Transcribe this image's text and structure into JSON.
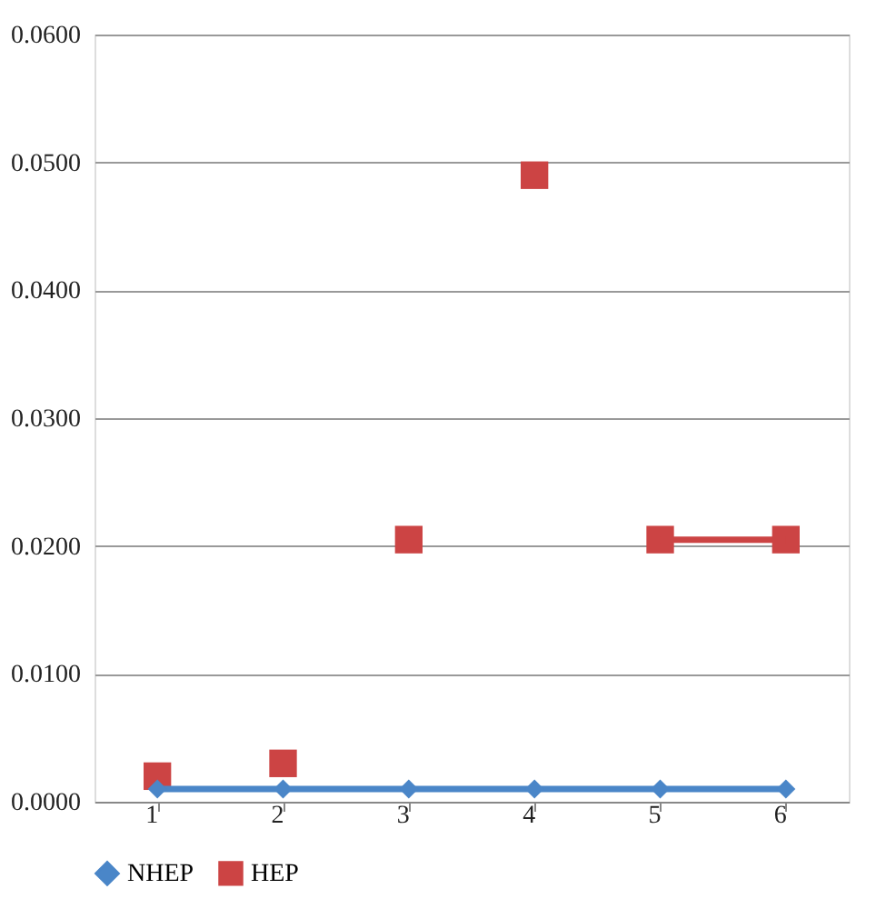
{
  "chart_data": {
    "type": "line",
    "categories": [
      "1",
      "2",
      "3",
      "4",
      "5",
      "6"
    ],
    "series": [
      {
        "name": "NHEP",
        "color": "#4a86c8",
        "type": "line",
        "marker": "diamond",
        "values": [
          0.001,
          0.001,
          0.001,
          0.001,
          0.001,
          0.001
        ]
      },
      {
        "name": "HEP",
        "color": "#cc4444",
        "type": "scatter",
        "marker": "square",
        "values": [
          0.002,
          0.003,
          0.0205,
          0.049,
          0.0205,
          0.0205
        ]
      },
      {
        "color": "#cc4444",
        "type": "line",
        "marker": "none",
        "x": [
          "5",
          "6"
        ],
        "values": [
          0.0205,
          0.0205
        ]
      }
    ],
    "ylim": [
      0,
      0.06
    ],
    "yticks": [
      {
        "value": 0,
        "label": "0.0000"
      },
      {
        "value": 0.01,
        "label": "0.0100"
      },
      {
        "value": 0.02,
        "label": "0.0200"
      },
      {
        "value": 0.03,
        "label": "0.0300"
      },
      {
        "value": 0.04,
        "label": "0.0400"
      },
      {
        "value": 0.05,
        "label": "0.0500"
      },
      {
        "value": 0.06,
        "label": "0.0600"
      }
    ],
    "grid": "y",
    "legend": "bottom"
  }
}
